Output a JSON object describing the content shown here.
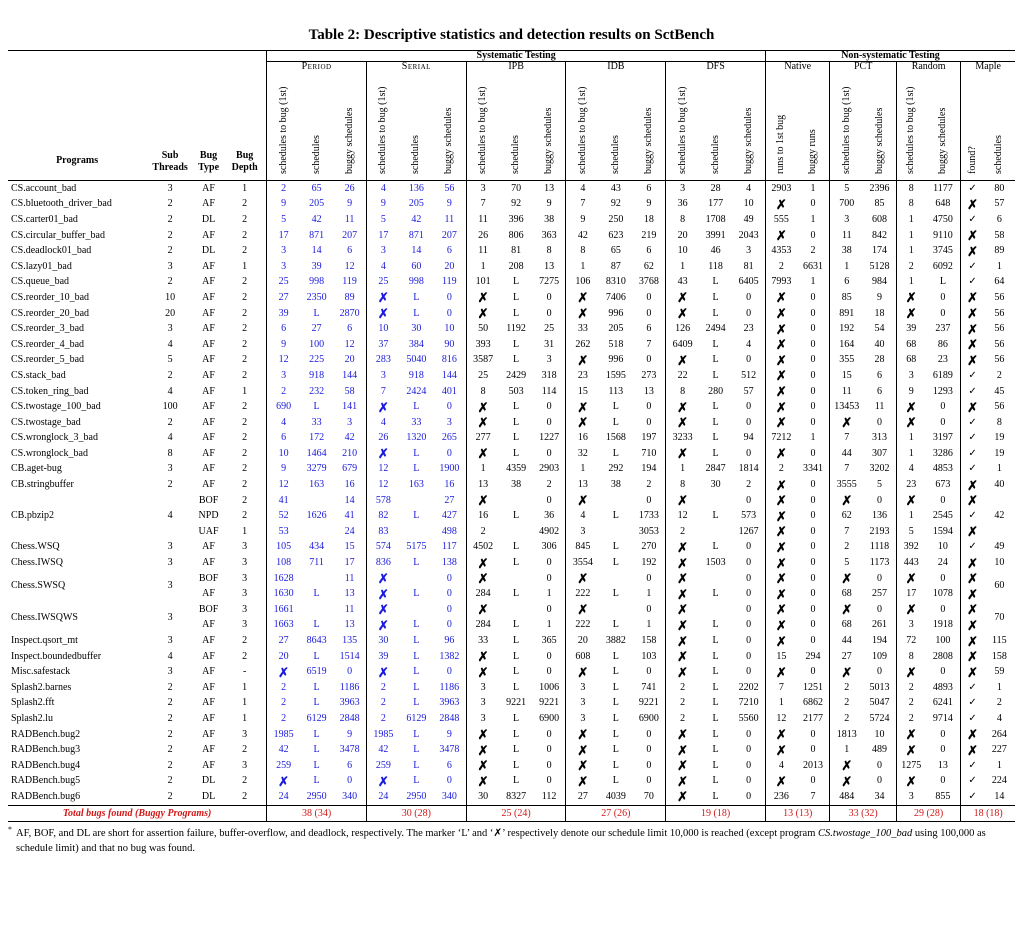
{
  "title": "Table 2: Descriptive statistics and detection results on SctBench",
  "groups": {
    "systematic": "Systematic Testing",
    "nonsystematic": "Non-systematic Testing",
    "period": "Period",
    "serial": "Serial",
    "ipb": "IPB",
    "idb": "IDB",
    "dfs": "DFS",
    "native": "Native",
    "pct": "PCT",
    "random": "Random",
    "maple": "Maple"
  },
  "col_headers": {
    "programs": "Programs",
    "sub_threads": "Sub Threads",
    "bug_type": "Bug Type",
    "bug_depth": "Bug Depth",
    "schedules_to_bug": "schedules to bug (1st)",
    "schedules": "schedules",
    "buggy_schedules": "buggy schedules",
    "runs_to_bug": "runs to 1st bug",
    "buggy_runs": "buggy runs",
    "found": "found?"
  },
  "rows": [
    [
      "CS.account_bad",
      "3",
      "AF",
      "1",
      "2",
      "65",
      "26",
      "4",
      "136",
      "56",
      "3",
      "70",
      "13",
      "4",
      "43",
      "6",
      "3",
      "28",
      "4",
      "2903",
      "1",
      "5",
      "2396",
      "8",
      "1177",
      "✓",
      "80"
    ],
    [
      "CS.bluetooth_driver_bad",
      "2",
      "AF",
      "2",
      "9",
      "205",
      "9",
      "9",
      "205",
      "9",
      "7",
      "92",
      "9",
      "7",
      "92",
      "9",
      "36",
      "177",
      "10",
      "✗",
      "0",
      "700",
      "85",
      "8",
      "648",
      "✗",
      "57"
    ],
    [
      "CS.carter01_bad",
      "2",
      "DL",
      "2",
      "5",
      "42",
      "11",
      "5",
      "42",
      "11",
      "11",
      "396",
      "38",
      "9",
      "250",
      "18",
      "8",
      "1708",
      "49",
      "555",
      "1",
      "3",
      "608",
      "1",
      "4750",
      "✓",
      "6"
    ],
    [
      "CS.circular_buffer_bad",
      "2",
      "AF",
      "2",
      "17",
      "871",
      "207",
      "17",
      "871",
      "207",
      "26",
      "806",
      "363",
      "42",
      "623",
      "219",
      "20",
      "3991",
      "2043",
      "✗",
      "0",
      "11",
      "842",
      "1",
      "9110",
      "✗",
      "58"
    ],
    [
      "CS.deadlock01_bad",
      "2",
      "DL",
      "2",
      "3",
      "14",
      "6",
      "3",
      "14",
      "6",
      "11",
      "81",
      "8",
      "8",
      "65",
      "6",
      "10",
      "46",
      "3",
      "4353",
      "2",
      "38",
      "174",
      "1",
      "3745",
      "✗",
      "89"
    ],
    [
      "CS.lazy01_bad",
      "3",
      "AF",
      "1",
      "3",
      "39",
      "12",
      "4",
      "60",
      "20",
      "1",
      "208",
      "13",
      "1",
      "87",
      "62",
      "1",
      "118",
      "81",
      "2",
      "6631",
      "1",
      "5128",
      "2",
      "6092",
      "✓",
      "1"
    ],
    [
      "CS.queue_bad",
      "2",
      "AF",
      "2",
      "25",
      "998",
      "119",
      "25",
      "998",
      "119",
      "101",
      "L",
      "7275",
      "106",
      "8310",
      "3768",
      "43",
      "L",
      "6405",
      "7993",
      "1",
      "6",
      "984",
      "1",
      "L",
      "✓",
      "64"
    ],
    [
      "CS.reorder_10_bad",
      "10",
      "AF",
      "2",
      "27",
      "2350",
      "89",
      "✗",
      "L",
      "0",
      "✗",
      "L",
      "0",
      "✗",
      "7406",
      "0",
      "✗",
      "L",
      "0",
      "✗",
      "0",
      "85",
      "9",
      "✗",
      "0",
      "✗",
      "56"
    ],
    [
      "CS.reorder_20_bad",
      "20",
      "AF",
      "2",
      "39",
      "L",
      "2870",
      "✗",
      "L",
      "0",
      "✗",
      "L",
      "0",
      "✗",
      "996",
      "0",
      "✗",
      "L",
      "0",
      "✗",
      "0",
      "891",
      "18",
      "✗",
      "0",
      "✗",
      "56"
    ],
    [
      "CS.reorder_3_bad",
      "3",
      "AF",
      "2",
      "6",
      "27",
      "6",
      "10",
      "30",
      "10",
      "50",
      "1192",
      "25",
      "33",
      "205",
      "6",
      "126",
      "2494",
      "23",
      "✗",
      "0",
      "192",
      "54",
      "39",
      "237",
      "✗",
      "56"
    ],
    [
      "CS.reorder_4_bad",
      "4",
      "AF",
      "2",
      "9",
      "100",
      "12",
      "37",
      "384",
      "90",
      "393",
      "L",
      "31",
      "262",
      "518",
      "7",
      "6409",
      "L",
      "4",
      "✗",
      "0",
      "164",
      "40",
      "68",
      "86",
      "✗",
      "56"
    ],
    [
      "CS.reorder_5_bad",
      "5",
      "AF",
      "2",
      "12",
      "225",
      "20",
      "283",
      "5040",
      "816",
      "3587",
      "L",
      "3",
      "✗",
      "996",
      "0",
      "✗",
      "L",
      "0",
      "✗",
      "0",
      "355",
      "28",
      "68",
      "23",
      "✗",
      "56"
    ],
    [
      "CS.stack_bad",
      "2",
      "AF",
      "2",
      "3",
      "918",
      "144",
      "3",
      "918",
      "144",
      "25",
      "2429",
      "318",
      "23",
      "1595",
      "273",
      "22",
      "L",
      "512",
      "✗",
      "0",
      "15",
      "6",
      "3",
      "6189",
      "✓",
      "2"
    ],
    [
      "CS.token_ring_bad",
      "4",
      "AF",
      "1",
      "2",
      "232",
      "58",
      "7",
      "2424",
      "401",
      "8",
      "503",
      "114",
      "15",
      "113",
      "13",
      "8",
      "280",
      "57",
      "✗",
      "0",
      "11",
      "6",
      "9",
      "1293",
      "✓",
      "45"
    ],
    [
      "CS.twostage_100_bad",
      "100",
      "AF",
      "2",
      "690",
      "L",
      "141",
      "✗",
      "L",
      "0",
      "✗",
      "L",
      "0",
      "✗",
      "L",
      "0",
      "✗",
      "L",
      "0",
      "✗",
      "0",
      "13453",
      "11",
      "✗",
      "0",
      "✗",
      "56"
    ],
    [
      "CS.twostage_bad",
      "2",
      "AF",
      "2",
      "4",
      "33",
      "3",
      "4",
      "33",
      "3",
      "✗",
      "L",
      "0",
      "✗",
      "L",
      "0",
      "✗",
      "L",
      "0",
      "✗",
      "0",
      "✗",
      "0",
      "✗",
      "0",
      "✓",
      "8"
    ],
    [
      "CS.wronglock_3_bad",
      "4",
      "AF",
      "2",
      "6",
      "172",
      "42",
      "26",
      "1320",
      "265",
      "277",
      "L",
      "1227",
      "16",
      "1568",
      "197",
      "3233",
      "L",
      "94",
      "7212",
      "1",
      "7",
      "313",
      "1",
      "3197",
      "✓",
      "19"
    ],
    [
      "CS.wronglock_bad",
      "8",
      "AF",
      "2",
      "10",
      "1464",
      "210",
      "✗",
      "L",
      "0",
      "✗",
      "L",
      "0",
      "32",
      "L",
      "710",
      "✗",
      "L",
      "0",
      "✗",
      "0",
      "44",
      "307",
      "1",
      "3286",
      "✓",
      "19"
    ],
    [
      "CB.aget-bug",
      "3",
      "AF",
      "2",
      "9",
      "3279",
      "679",
      "12",
      "L",
      "1900",
      "1",
      "4359",
      "2903",
      "1",
      "292",
      "194",
      "1",
      "2847",
      "1814",
      "2",
      "3341",
      "7",
      "3202",
      "4",
      "4853",
      "✓",
      "1"
    ],
    [
      "CB.stringbuffer",
      "2",
      "AF",
      "2",
      "12",
      "163",
      "16",
      "12",
      "163",
      "16",
      "13",
      "38",
      "2",
      "13",
      "38",
      "2",
      "8",
      "30",
      "2",
      "✗",
      "0",
      "3555",
      "5",
      "23",
      "673",
      "✗",
      "40"
    ],
    [
      "Chess.WSQ",
      "3",
      "AF",
      "3",
      "105",
      "434",
      "15",
      "574",
      "5175",
      "117",
      "4502",
      "L",
      "306",
      "845",
      "L",
      "270",
      "✗",
      "L",
      "0",
      "✗",
      "0",
      "2",
      "1118",
      "392",
      "10",
      "✓",
      "49"
    ],
    [
      "Chess.IWSQ",
      "3",
      "AF",
      "3",
      "108",
      "711",
      "17",
      "836",
      "L",
      "138",
      "✗",
      "L",
      "0",
      "3554",
      "L",
      "192",
      "✗",
      "1503",
      "0",
      "✗",
      "0",
      "5",
      "1173",
      "443",
      "24",
      "✗",
      "10"
    ],
    [
      "Inspect.qsort_mt",
      "3",
      "AF",
      "2",
      "27",
      "8643",
      "135",
      "30",
      "L",
      "96",
      "33",
      "L",
      "365",
      "20",
      "3882",
      "158",
      "✗",
      "L",
      "0",
      "✗",
      "0",
      "44",
      "194",
      "72",
      "100",
      "✗",
      "115"
    ],
    [
      "Inspect.boundedbuffer",
      "4",
      "AF",
      "2",
      "20",
      "L",
      "1514",
      "39",
      "L",
      "1382",
      "✗",
      "L",
      "0",
      "608",
      "L",
      "103",
      "✗",
      "L",
      "0",
      "15",
      "294",
      "27",
      "109",
      "8",
      "2808",
      "✗",
      "158"
    ],
    [
      "Misc.safestack",
      "3",
      "AF",
      "-",
      "✗",
      "6519",
      "0",
      "✗",
      "L",
      "0",
      "✗",
      "L",
      "0",
      "✗",
      "L",
      "0",
      "✗",
      "L",
      "0",
      "✗",
      "0",
      "✗",
      "0",
      "✗",
      "0",
      "✗",
      "59"
    ],
    [
      "Splash2.barnes",
      "2",
      "AF",
      "1",
      "2",
      "L",
      "1186",
      "2",
      "L",
      "1186",
      "3",
      "L",
      "1006",
      "3",
      "L",
      "741",
      "2",
      "L",
      "2202",
      "7",
      "1251",
      "2",
      "5013",
      "2",
      "4893",
      "✓",
      "1"
    ],
    [
      "Splash2.fft",
      "2",
      "AF",
      "1",
      "2",
      "L",
      "3963",
      "2",
      "L",
      "3963",
      "3",
      "9221",
      "9221",
      "3",
      "L",
      "9221",
      "2",
      "L",
      "7210",
      "1",
      "6862",
      "2",
      "5047",
      "2",
      "6241",
      "✓",
      "2"
    ],
    [
      "Splash2.lu",
      "2",
      "AF",
      "1",
      "2",
      "6129",
      "2848",
      "2",
      "6129",
      "2848",
      "3",
      "L",
      "6900",
      "3",
      "L",
      "6900",
      "2",
      "L",
      "5560",
      "12",
      "2177",
      "2",
      "5724",
      "2",
      "9714",
      "✓",
      "4"
    ],
    [
      "RADBench.bug2",
      "2",
      "AF",
      "3",
      "1985",
      "L",
      "9",
      "1985",
      "L",
      "9",
      "✗",
      "L",
      "0",
      "✗",
      "L",
      "0",
      "✗",
      "L",
      "0",
      "✗",
      "0",
      "1813",
      "10",
      "✗",
      "0",
      "✗",
      "264"
    ],
    [
      "RADBench.bug3",
      "2",
      "AF",
      "2",
      "42",
      "L",
      "3478",
      "42",
      "L",
      "3478",
      "✗",
      "L",
      "0",
      "✗",
      "L",
      "0",
      "✗",
      "L",
      "0",
      "✗",
      "0",
      "1",
      "489",
      "✗",
      "0",
      "✗",
      "227"
    ],
    [
      "RADBench.bug4",
      "2",
      "AF",
      "3",
      "259",
      "L",
      "6",
      "259",
      "L",
      "6",
      "✗",
      "L",
      "0",
      "✗",
      "L",
      "0",
      "✗",
      "L",
      "0",
      "4",
      "2013",
      "✗",
      "0",
      "1275",
      "13",
      "✓",
      "1"
    ],
    [
      "RADBench.bug5",
      "2",
      "DL",
      "2",
      "✗",
      "L",
      "0",
      "✗",
      "L",
      "0",
      "✗",
      "L",
      "0",
      "✗",
      "L",
      "0",
      "✗",
      "L",
      "0",
      "✗",
      "0",
      "✗",
      "0",
      "✗",
      "0",
      "✓",
      "224"
    ],
    [
      "RADBench.bug6",
      "2",
      "DL",
      "2",
      "24",
      "2950",
      "340",
      "24",
      "2950",
      "340",
      "30",
      "8327",
      "112",
      "27",
      "4039",
      "70",
      "✗",
      "L",
      "0",
      "236",
      "7",
      "484",
      "34",
      "3",
      "855",
      "✓",
      "14"
    ]
  ],
  "grouped": {
    "pbzip2": {
      "name": "CB.pbzip2",
      "threads": "4",
      "sub": [
        [
          "BOF",
          "2",
          "41",
          "14",
          "578",
          "27",
          "✗",
          "0",
          "✗",
          "0",
          "✗",
          "0",
          "✗",
          "0",
          "✗",
          "0",
          "✗",
          "0",
          "✗"
        ],
        [
          "NPD",
          "2",
          "52",
          "41",
          "82",
          "427",
          "16",
          "36",
          "4",
          "1733",
          "12",
          "573",
          "✗",
          "0",
          "62",
          "136",
          "1",
          "2545",
          "✓"
        ],
        [
          "UAF",
          "1",
          "53",
          "24",
          "83",
          "498",
          "2",
          "4902",
          "3",
          "3053",
          "2",
          "1267",
          "✗",
          "0",
          "7",
          "2193",
          "5",
          "1594",
          "✗"
        ]
      ],
      "mid": [
        "1626",
        "L",
        "L",
        "L",
        "L",
        "42"
      ]
    },
    "swsq": {
      "name": "Chess.SWSQ",
      "threads": "3",
      "sub": [
        [
          "BOF",
          "3",
          "1628",
          "11",
          "✗",
          "0",
          "✗",
          "0",
          "✗",
          "0",
          "✗",
          "0",
          "✗",
          "0",
          "✗",
          "0",
          "✗",
          "0",
          "✗"
        ],
        [
          "AF",
          "3",
          "1630",
          "13",
          "✗",
          "0",
          "284",
          "1",
          "222",
          "1",
          "✗",
          "0",
          "✗",
          "0",
          "68",
          "257",
          "17",
          "1078",
          "✗"
        ]
      ],
      "mid": [
        "L",
        "L",
        "L",
        "L",
        "L",
        "60"
      ]
    },
    "iwsqws": {
      "name": "Chess.IWSQWS",
      "threads": "3",
      "sub": [
        [
          "BOF",
          "3",
          "1661",
          "11",
          "✗",
          "0",
          "✗",
          "0",
          "✗",
          "0",
          "✗",
          "0",
          "✗",
          "0",
          "✗",
          "0",
          "✗",
          "0",
          "✗"
        ],
        [
          "AF",
          "3",
          "1663",
          "13",
          "✗",
          "0",
          "284",
          "1",
          "222",
          "1",
          "✗",
          "0",
          "✗",
          "0",
          "68",
          "261",
          "3",
          "1918",
          "✗"
        ]
      ],
      "mid": [
        "L",
        "L",
        "L",
        "L",
        "L",
        "70"
      ]
    }
  },
  "total": {
    "label": "Total bugs found (Buggy Programs)",
    "values": [
      "38 (34)",
      "30 (28)",
      "25 (24)",
      "27 (26)",
      "19 (18)",
      "13 (13)",
      "33 (32)",
      "29 (28)",
      "18 (18)"
    ]
  },
  "footnote": {
    "mark": "*",
    "text1": "AF, BOF, and DL are short for assertion failure, buffer-overflow, and deadlock, respectively. The marker ‘L’ and ‘✗’ respectively denote our schedule limit 10,000 is reached (except program",
    "prog": "CS.twostage_100_bad",
    "text2": "using 100,000 as schedule limit) and that no bug was found."
  },
  "colors": {
    "highlight": "#1a1adb",
    "total": "#d01818"
  }
}
